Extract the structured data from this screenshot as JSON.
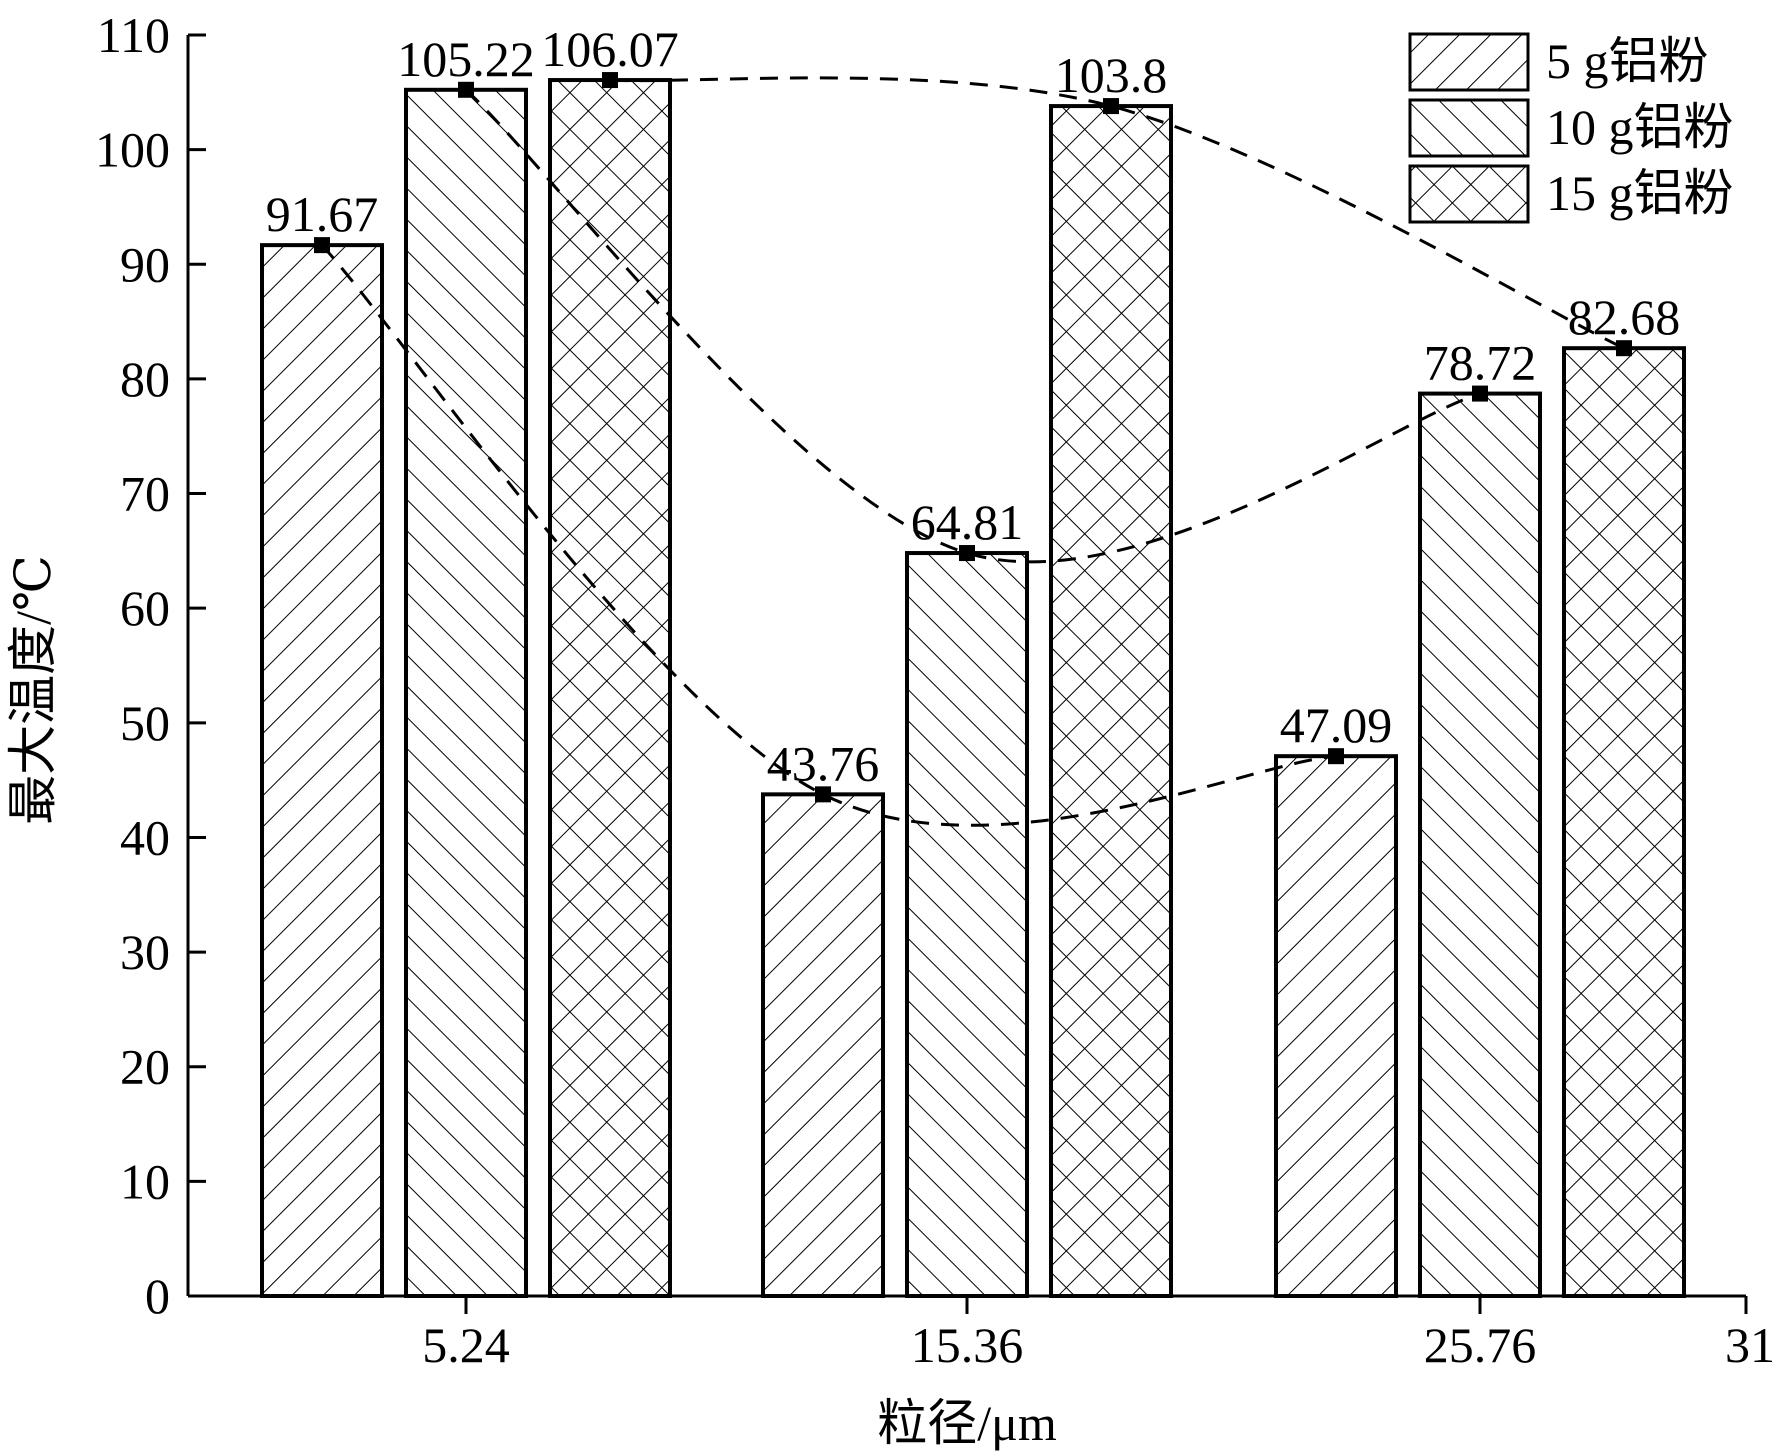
{
  "chart_data": {
    "type": "bar",
    "xlabel": "粒径/μm",
    "ylabel": "最大温度/℃",
    "categories": [
      "5.24",
      "15.36",
      "25.76"
    ],
    "x_extra_tick": "31",
    "ylim": [
      0,
      110
    ],
    "yticks": [
      "0",
      "10",
      "20",
      "30",
      "40",
      "50",
      "60",
      "70",
      "80",
      "90",
      "100",
      "110"
    ],
    "grid": false,
    "legend_position": "top-right",
    "trend_lines": "dashed curves connecting each series' marker points",
    "series": [
      {
        "name": "5 g铝粉",
        "pattern": "diagonal-forward",
        "values": [
          91.67,
          43.76,
          47.09
        ],
        "labels": [
          "91.67",
          "43.76",
          "47.09"
        ]
      },
      {
        "name": "10 g铝粉",
        "pattern": "diagonal-backward",
        "values": [
          105.22,
          64.81,
          78.72
        ],
        "labels": [
          "105.22",
          "64.81",
          "78.72"
        ]
      },
      {
        "name": "15 g铝粉",
        "pattern": "crosshatch",
        "values": [
          106.07,
          103.8,
          82.68
        ],
        "labels": [
          "106.07",
          "103.8",
          "82.68"
        ]
      }
    ],
    "colors": {
      "bar_fill": "#ffffff",
      "stroke": "#000000",
      "marker": "#000000"
    }
  }
}
